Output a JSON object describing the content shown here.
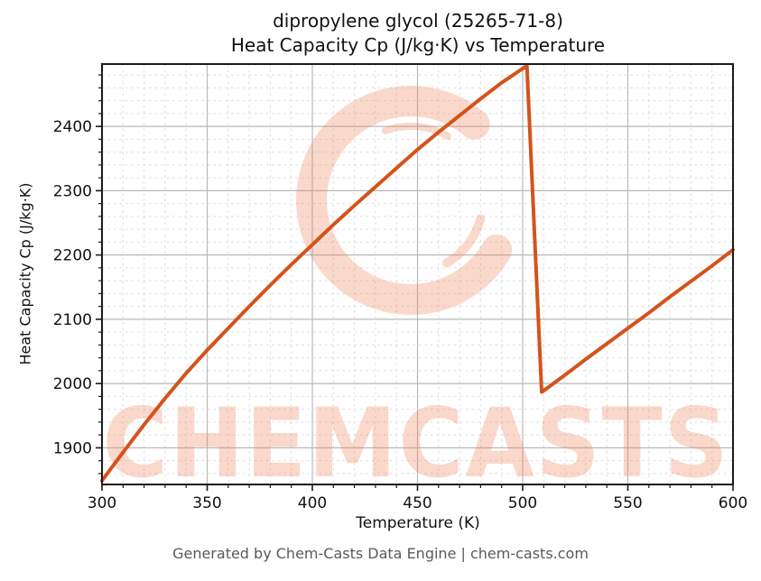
{
  "page": {
    "title_line1": "dipropylene glycol (25265-71-8)",
    "title_line2": "Heat Capacity Cp (J/kg·K) vs Temperature",
    "footer": "Generated by Chem-Casts Data Engine | chem-casts.com"
  },
  "watermark": {
    "text": "CHEMCASTS",
    "logo": "brush-circle-c-logo",
    "color": "#f0815a",
    "opacity": 0.3
  },
  "chart_data": {
    "type": "line",
    "title": "dipropylene glycol (25265-71-8)",
    "subtitle": "Heat Capacity Cp (J/kg·K) vs Temperature",
    "xlabel": "Temperature (K)",
    "ylabel": "Heat Capacity Cp (J/kg·K)",
    "xlim": [
      300,
      600
    ],
    "ylim": [
      1843,
      2497
    ],
    "x_major_ticks": [
      300,
      350,
      400,
      450,
      500,
      550,
      600
    ],
    "y_major_ticks": [
      1900,
      2000,
      2100,
      2200,
      2300,
      2400
    ],
    "x_minor_step": 10,
    "y_minor_step": 20,
    "grid": {
      "major": "solid",
      "minor": "dashed"
    },
    "legend": "none",
    "line_color": "#d4531c",
    "line_width": 4,
    "series": [
      {
        "name": "Heat Capacity Cp",
        "points": [
          [
            300,
            1849
          ],
          [
            310,
            1893
          ],
          [
            320,
            1936
          ],
          [
            330,
            1977
          ],
          [
            340,
            2016
          ],
          [
            350,
            2052
          ],
          [
            360,
            2086
          ],
          [
            370,
            2120
          ],
          [
            380,
            2153
          ],
          [
            390,
            2185
          ],
          [
            400,
            2216
          ],
          [
            410,
            2247
          ],
          [
            420,
            2277
          ],
          [
            430,
            2306
          ],
          [
            440,
            2335
          ],
          [
            450,
            2364
          ],
          [
            460,
            2391
          ],
          [
            470,
            2417
          ],
          [
            480,
            2443
          ],
          [
            490,
            2468
          ],
          [
            500,
            2490
          ],
          [
            502,
            2494
          ],
          [
            509,
            1987
          ],
          [
            510,
            1989
          ],
          [
            520,
            2013
          ],
          [
            530,
            2038
          ],
          [
            540,
            2062
          ],
          [
            550,
            2086
          ],
          [
            560,
            2110
          ],
          [
            570,
            2135
          ],
          [
            580,
            2159
          ],
          [
            590,
            2183
          ],
          [
            600,
            2208
          ]
        ]
      }
    ]
  }
}
